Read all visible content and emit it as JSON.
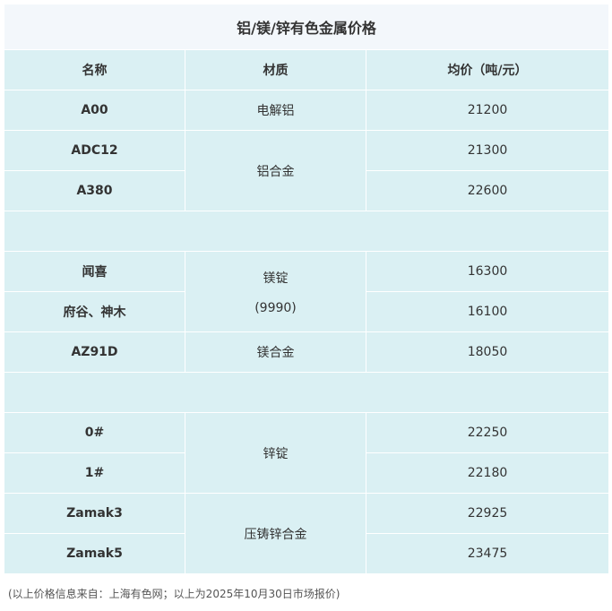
{
  "title": "铝/镁/锌有色金属价格",
  "headers": [
    "名称",
    "材质",
    "均价（吨/元）"
  ],
  "rows": {
    "a00": {
      "name": "A00",
      "material": "电解铝",
      "price": "21200"
    },
    "adc12": {
      "name": "ADC12",
      "price": "21300"
    },
    "a380": {
      "name": "A380",
      "price": "22600"
    },
    "al_alloy": "铝合金",
    "wenxi": {
      "name": "闻喜",
      "price": "16300"
    },
    "fugu": {
      "name": "府谷、神木",
      "price": "16100"
    },
    "mg_ingot": "镁锭",
    "mg_ingot_grade": "(9990)",
    "az91d": {
      "name": "AZ91D",
      "material": "镁合金",
      "price": "18050"
    },
    "zn0": {
      "name": "0#",
      "price": "22250"
    },
    "zn1": {
      "name": "1#",
      "price": "22180"
    },
    "zn_ingot": "锌锭",
    "zamak3": {
      "name": "Zamak3",
      "price": "22925"
    },
    "zamak5": {
      "name": "Zamak5",
      "price": "23475"
    },
    "zn_alloy": "压铸锌合金"
  },
  "footnote": "(以上价格信息来自：上海有色网；以上为2025年10月30日市场报价)"
}
